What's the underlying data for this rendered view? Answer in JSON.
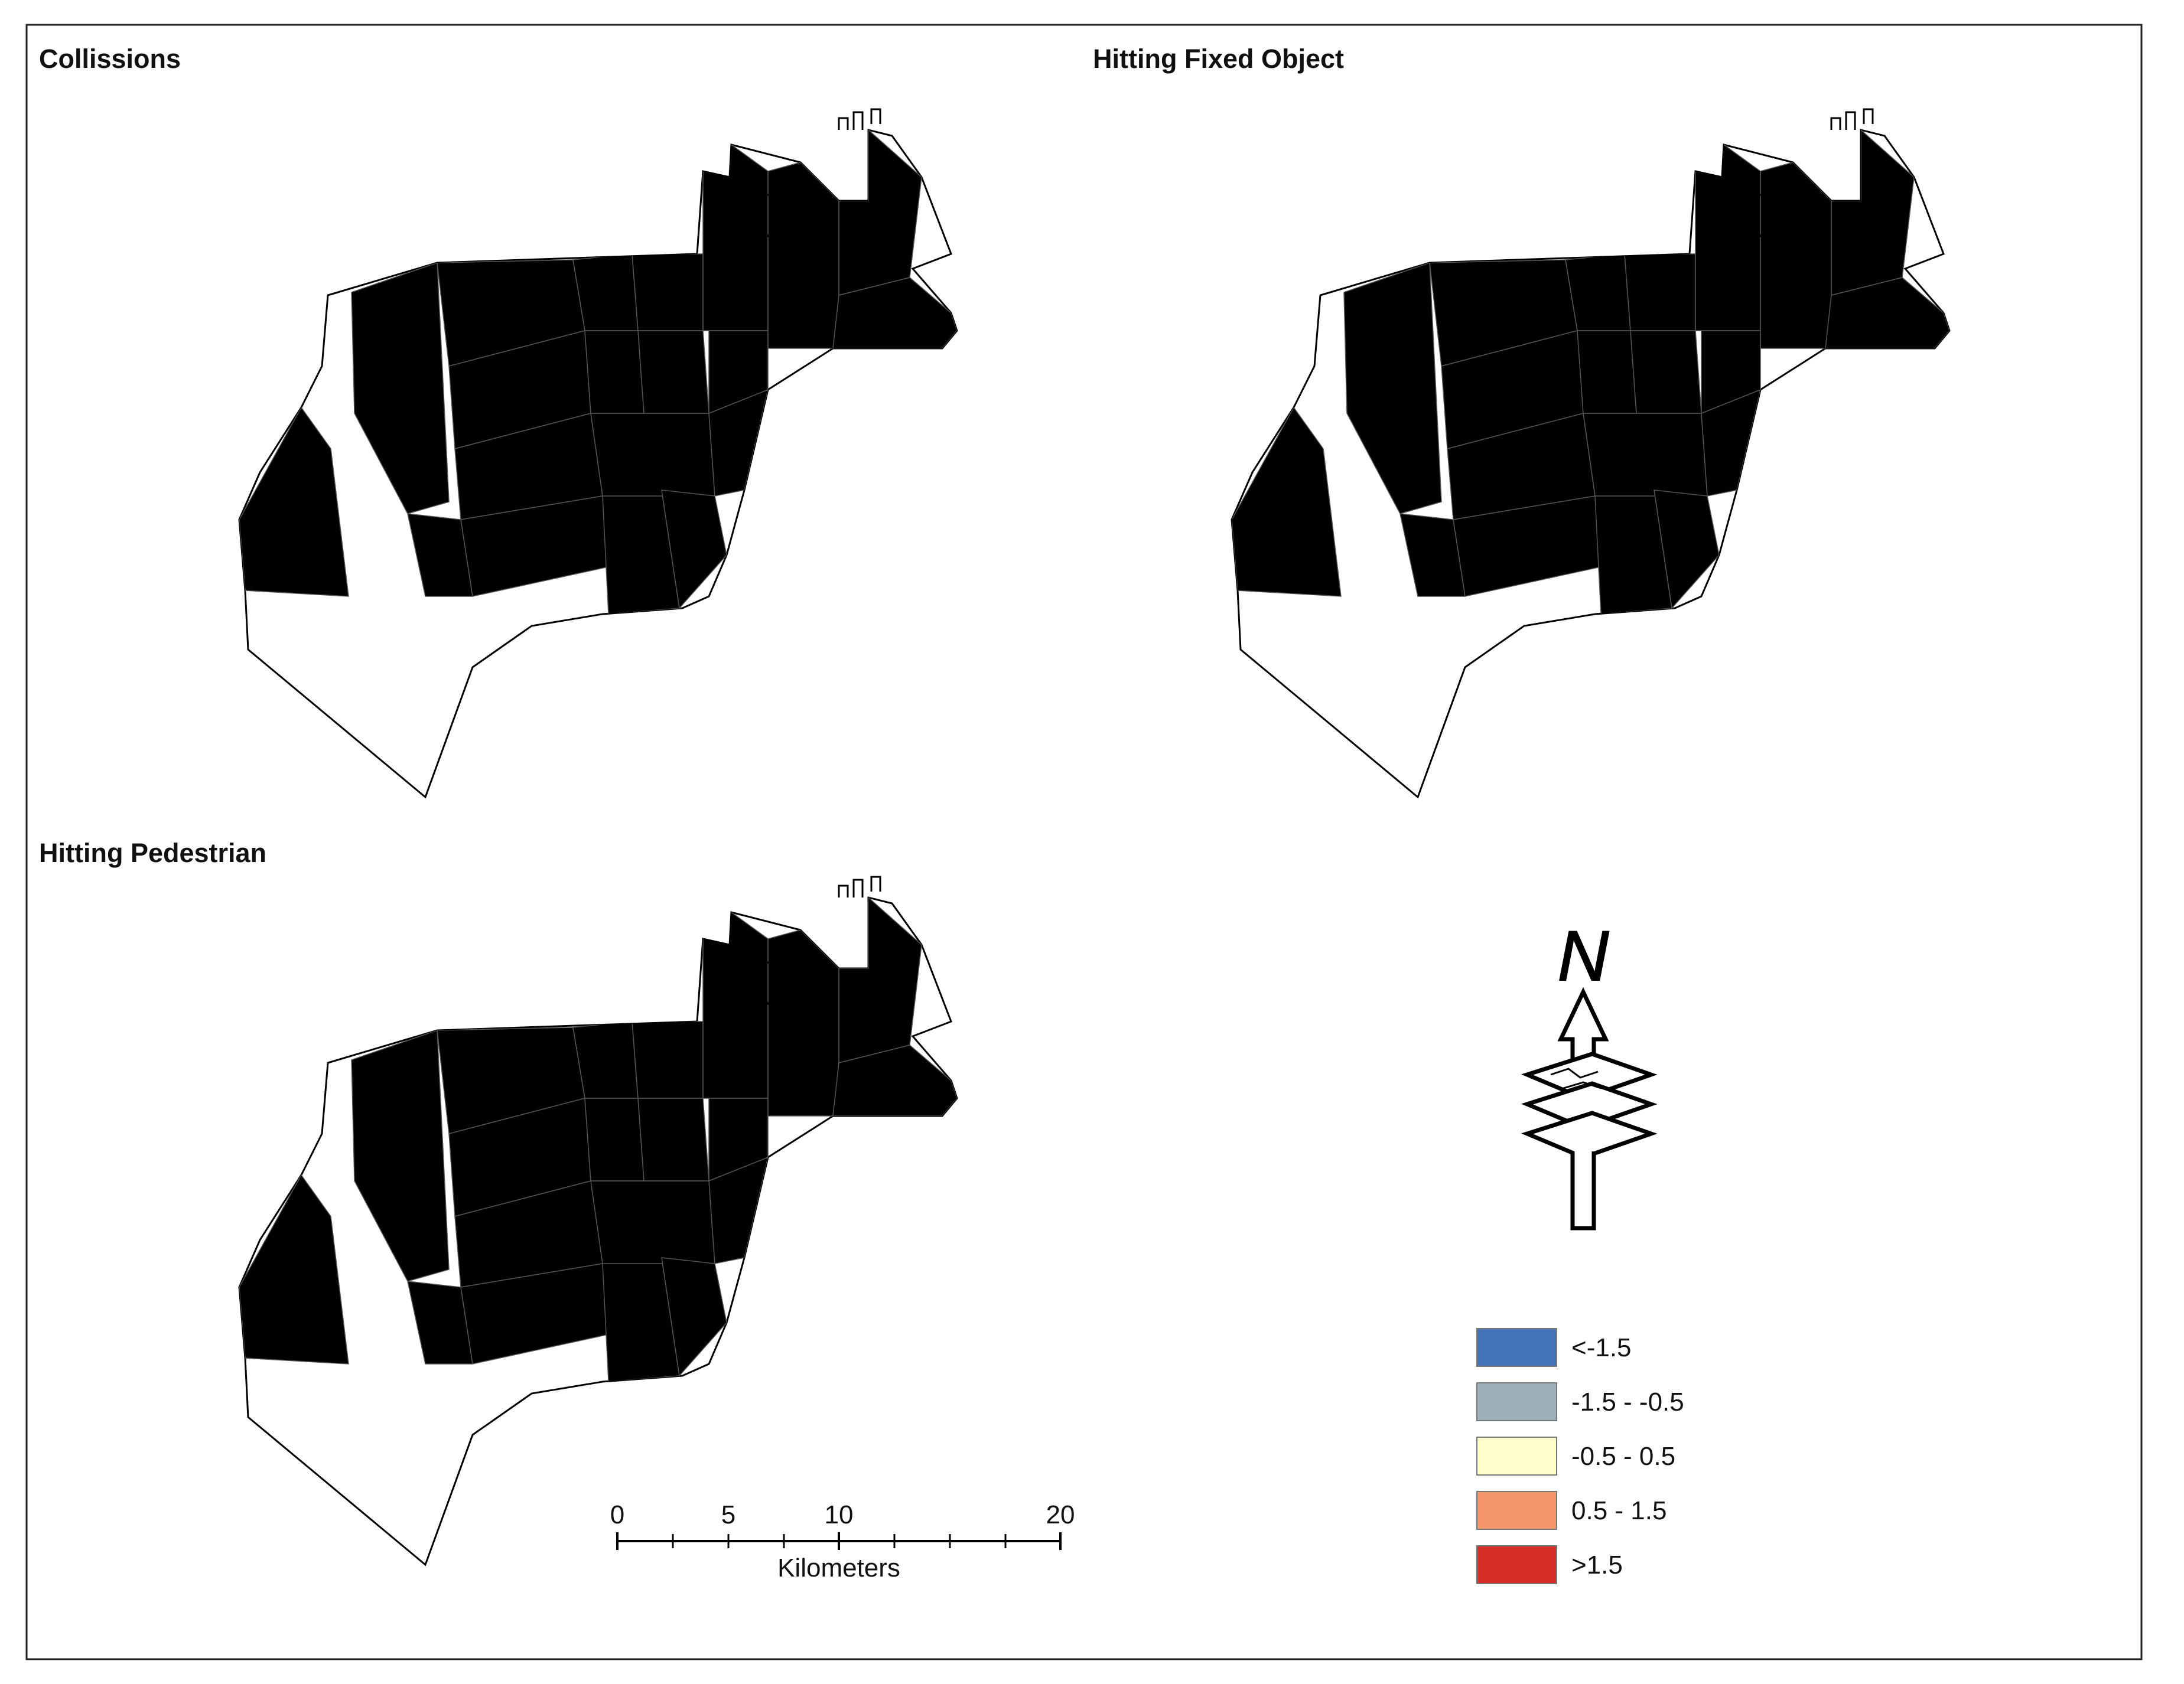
{
  "panels": [
    {
      "title": "Collissions"
    },
    {
      "title": "Hitting Fixed Object"
    },
    {
      "title": "Hitting Pedestrian"
    }
  ],
  "legend": {
    "items": [
      {
        "label": "<-1.5",
        "color": "#4472b6"
      },
      {
        "label": "-1.5 - -0.5",
        "color": "#9fafb9"
      },
      {
        "label": "-0.5 - 0.5",
        "color": "#ffffcc"
      },
      {
        "label": "0.5 - 1.5",
        "color": "#f4966a"
      },
      {
        "label": ">1.5",
        "color": "#d62f27"
      }
    ]
  },
  "scale_bar": {
    "ticks": [
      "0",
      "5",
      "10",
      "20"
    ],
    "unit": "Kilometers"
  },
  "north_arrow": {
    "label": "N",
    "icon": "north-arrow-icon"
  }
}
